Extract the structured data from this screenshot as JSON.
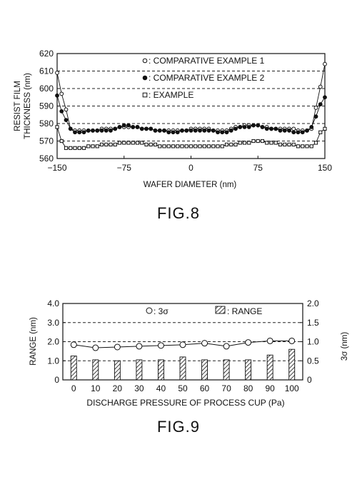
{
  "figure8": {
    "caption": "FIG.8",
    "chart_data": {
      "type": "line",
      "title": "",
      "xlabel": "WAFER DIAMETER (nm)",
      "ylabel": "RESIST FILM THICKNESS (nm)",
      "ylabel_lines": [
        "RESIST FILM",
        "THICKNESS (nm)"
      ],
      "xlim": [
        -150,
        150
      ],
      "ylim": [
        560,
        620
      ],
      "xticks": [
        -150,
        -75,
        0,
        75,
        150
      ],
      "xtick_labels": [
        "−150",
        "−75",
        "0",
        "75",
        "150"
      ],
      "yticks": [
        560,
        570,
        580,
        590,
        600,
        610,
        620
      ],
      "grid": "horizontal dashed",
      "legend_position": "top-center",
      "x": [
        -150,
        -145,
        -140,
        -135,
        -130,
        -125,
        -120,
        -115,
        -110,
        -105,
        -100,
        -95,
        -90,
        -85,
        -80,
        -75,
        -70,
        -65,
        -60,
        -55,
        -50,
        -45,
        -40,
        -35,
        -30,
        -25,
        -20,
        -15,
        -10,
        -5,
        0,
        5,
        10,
        15,
        20,
        25,
        30,
        35,
        40,
        45,
        50,
        55,
        60,
        65,
        70,
        75,
        80,
        85,
        90,
        95,
        100,
        105,
        110,
        115,
        120,
        125,
        130,
        135,
        140,
        145,
        150
      ],
      "series": [
        {
          "name": ": COMPARATIVE EXAMPLE 1",
          "marker": "open-circle",
          "values": [
            609,
            597,
            588,
            577,
            576,
            576,
            576,
            576,
            576,
            576,
            577,
            577,
            577,
            577,
            578,
            578,
            578,
            578,
            578,
            577,
            577,
            577,
            576,
            576,
            576,
            576,
            576,
            576,
            576,
            576,
            577,
            577,
            577,
            577,
            577,
            576,
            576,
            576,
            576,
            577,
            578,
            578,
            579,
            579,
            579,
            579,
            578,
            578,
            577,
            577,
            577,
            577,
            577,
            577,
            576,
            576,
            576,
            577,
            589,
            601,
            614
          ]
        },
        {
          "name": ": COMPARATIVE EXAMPLE 2",
          "marker": "filled-circle",
          "values": [
            596,
            587,
            582,
            577,
            575,
            575,
            575,
            576,
            576,
            576,
            576,
            576,
            576,
            577,
            578,
            579,
            579,
            578,
            578,
            577,
            577,
            577,
            576,
            576,
            576,
            575,
            575,
            575,
            576,
            576,
            576,
            576,
            576,
            576,
            576,
            576,
            575,
            575,
            575,
            576,
            577,
            578,
            578,
            578,
            579,
            579,
            578,
            577,
            577,
            577,
            576,
            576,
            576,
            575,
            575,
            575,
            576,
            578,
            584,
            591,
            595
          ]
        },
        {
          "name": ": EXAMPLE",
          "marker": "open-square",
          "values": [
            578,
            570,
            566,
            566,
            566,
            566,
            566,
            567,
            567,
            567,
            568,
            568,
            568,
            568,
            569,
            569,
            569,
            569,
            569,
            569,
            568,
            568,
            568,
            567,
            567,
            567,
            567,
            567,
            567,
            567,
            567,
            567,
            567,
            567,
            567,
            567,
            567,
            567,
            568,
            568,
            568,
            569,
            569,
            569,
            570,
            570,
            570,
            569,
            569,
            569,
            568,
            568,
            568,
            568,
            567,
            567,
            567,
            567,
            569,
            575,
            577
          ]
        }
      ]
    }
  },
  "figure9": {
    "caption": "FIG.9",
    "chart_data": {
      "type": "bar",
      "title": "",
      "xlabel": "DISCHARGE PRESSURE OF PROCESS CUP (Pa)",
      "ylabel": "RANGE (nm)",
      "y2label": "3σ (nm)",
      "categories": [
        "0",
        "10",
        "20",
        "30",
        "40",
        "50",
        "60",
        "70",
        "80",
        "90",
        "100"
      ],
      "ylim": [
        0,
        4.0
      ],
      "yticks": [
        0,
        1.0,
        2.0,
        3.0,
        4.0
      ],
      "ytick_labels": [
        "0",
        "1.0",
        "2.0",
        "3.0",
        "4.0"
      ],
      "y2lim": [
        0,
        2.0
      ],
      "y2ticks": [
        0,
        0.5,
        1.0,
        1.5,
        2.0
      ],
      "y2tick_labels": [
        "0",
        "0.5",
        "1.0",
        "1.5",
        "2.0"
      ],
      "grid": "horizontal dashed",
      "legend_position": "top-right",
      "series": [
        {
          "name": ": RANGE",
          "type": "bar",
          "axis": "left",
          "pattern": "hatched",
          "values": [
            1.25,
            1.05,
            1.0,
            1.05,
            1.05,
            1.2,
            1.05,
            1.05,
            1.05,
            1.3,
            1.6
          ]
        },
        {
          "name": ": 3σ",
          "type": "line",
          "axis": "right",
          "marker": "open-circle",
          "values": [
            0.92,
            0.84,
            0.86,
            0.88,
            0.9,
            0.92,
            0.96,
            0.88,
            0.98,
            1.02,
            1.02
          ]
        }
      ]
    }
  }
}
